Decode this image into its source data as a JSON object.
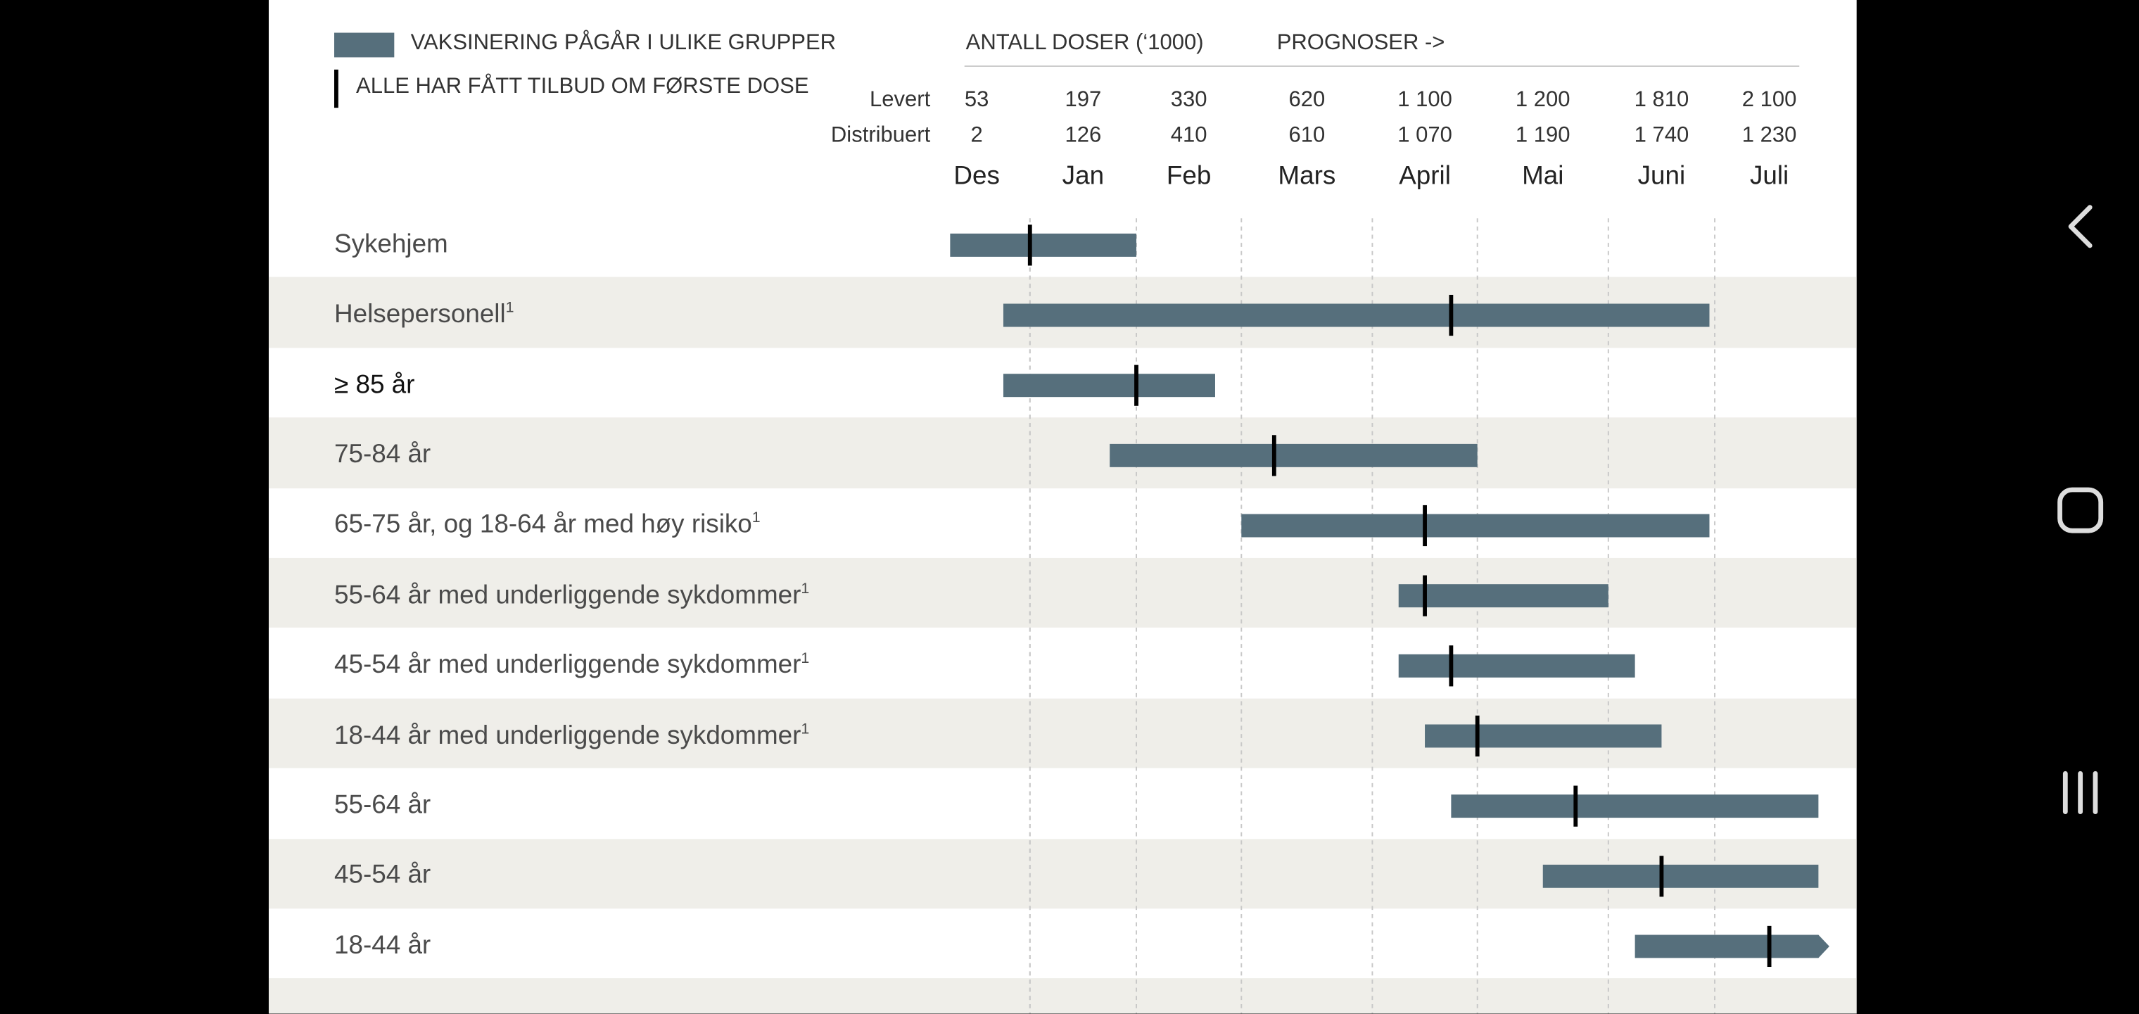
{
  "legend": {
    "bar_label": "VAKSINERING PÅGÅR I ULIKE GRUPPER",
    "marker_label": "ALLE HAR FÅTT TILBUD OM FØRSTE DOSE"
  },
  "header": {
    "doses_title": "ANTALL DOSER (‘1000)",
    "forecast_title": "PROGNOSER ->",
    "delivered_label": "Levert",
    "distributed_label": "Distribuert"
  },
  "chart_data": {
    "type": "gantt",
    "months": [
      "Des",
      "Jan",
      "Feb",
      "Mars",
      "April",
      "Mai",
      "Juni",
      "Juli"
    ],
    "delivered": [
      "53",
      "197",
      "330",
      "620",
      "1 100",
      "1 200",
      "1 810",
      "2 100"
    ],
    "distributed": [
      "2",
      "126",
      "410",
      "610",
      "1 070",
      "1 190",
      "1 740",
      "1 230"
    ],
    "x_unit": "month index (0 = start of Des, 1 = start of Jan, ...)",
    "rows": [
      {
        "label": "Sykehjem",
        "sup": "",
        "start": 0.25,
        "end": 2.0,
        "marker": 1.0,
        "arrow": false
      },
      {
        "label": "Helsepersonell",
        "sup": "1",
        "start": 0.75,
        "end": 6.95,
        "marker": 4.75,
        "arrow": false
      },
      {
        "label": "≥ 85 år",
        "sup": "",
        "start": 0.75,
        "end": 2.75,
        "marker": 2.0,
        "arrow": false
      },
      {
        "label": "75-84 år",
        "sup": "",
        "start": 1.75,
        "end": 5.0,
        "marker": 3.25,
        "arrow": false
      },
      {
        "label": "65-75 år, og 18-64 år med høy risiko",
        "sup": "1",
        "start": 3.0,
        "end": 6.95,
        "marker": 4.5,
        "arrow": false
      },
      {
        "label": "55-64 år med underliggende sykdommer",
        "sup": "1",
        "start": 4.25,
        "end": 6.0,
        "marker": 4.5,
        "arrow": false
      },
      {
        "label": "45-54 år med underliggende sykdommer",
        "sup": "1",
        "start": 4.25,
        "end": 6.25,
        "marker": 4.75,
        "arrow": false
      },
      {
        "label": "18-44 år med underliggende sykdommer",
        "sup": "1",
        "start": 4.5,
        "end": 6.5,
        "marker": 5.0,
        "arrow": false
      },
      {
        "label": "55-64 år",
        "sup": "",
        "start": 4.75,
        "end": 7.95,
        "marker": 5.75,
        "arrow": false
      },
      {
        "label": "45-54 år",
        "sup": "",
        "start": 5.5,
        "end": 7.95,
        "marker": 6.5,
        "arrow": false
      },
      {
        "label": "18-44 år",
        "sup": "",
        "start": 6.25,
        "end": 8.05,
        "marker": 7.5,
        "arrow": true
      }
    ],
    "colors": {
      "bar": "#566f7c",
      "marker": "#000000",
      "shade": "#efeee9"
    }
  },
  "nav": {
    "back_icon": "chevron-left-icon",
    "home_icon": "rounded-square-icon",
    "recents_icon": "three-bars-icon"
  }
}
